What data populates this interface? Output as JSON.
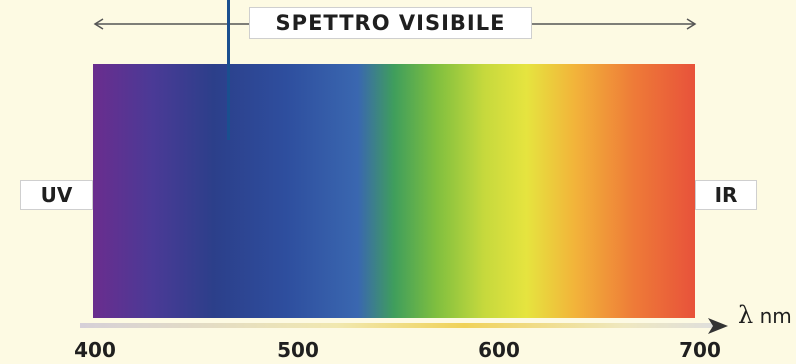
{
  "title": "SPETTRO VISIBILE",
  "left_label": "UV",
  "right_label": "IR",
  "axis": {
    "symbol": "λ",
    "unit": "nm",
    "ticks": [
      "400",
      "500",
      "600",
      "700"
    ]
  },
  "colors": {
    "background": "#fdfae3",
    "marker": "#1a4f8f"
  }
}
